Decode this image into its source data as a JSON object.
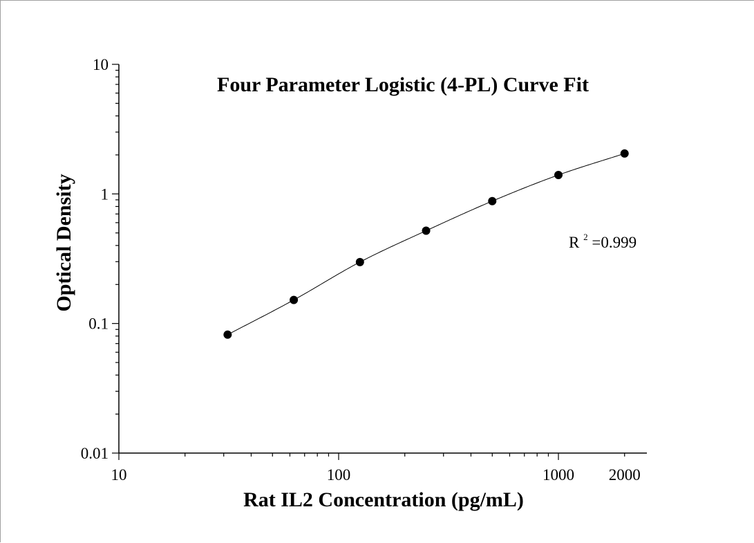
{
  "chart_data": {
    "type": "scatter",
    "title": "Four Parameter Logistic (4-PL) Curve Fit",
    "xlabel": "Rat IL2 Concentration (pg/mL)",
    "ylabel": "Optical Density",
    "x_scale": "log",
    "y_scale": "log",
    "xlim": [
      10,
      3000
    ],
    "ylim": [
      0.01,
      10
    ],
    "x_ticks": [
      {
        "value": 10,
        "label": "10"
      },
      {
        "value": 100,
        "label": "100"
      },
      {
        "value": 1000,
        "label": "1000"
      },
      {
        "value": 2000,
        "label": "2000"
      }
    ],
    "y_ticks": [
      {
        "value": 10,
        "label": "10"
      },
      {
        "value": 1,
        "label": "1"
      },
      {
        "value": 0.1,
        "label": "0.1"
      },
      {
        "value": 0.01,
        "label": "0.01"
      }
    ],
    "grid": false,
    "series": [
      {
        "type": "scatter",
        "x": [
          31.25,
          62.5,
          125,
          250,
          500,
          1000,
          2000
        ],
        "y": [
          0.082,
          0.152,
          0.298,
          0.52,
          0.88,
          1.4,
          2.05
        ]
      },
      {
        "type": "line",
        "fit": "4-PL"
      }
    ],
    "annotation": {
      "base": "R",
      "sup": "2",
      "rest": "=0.999"
    }
  }
}
